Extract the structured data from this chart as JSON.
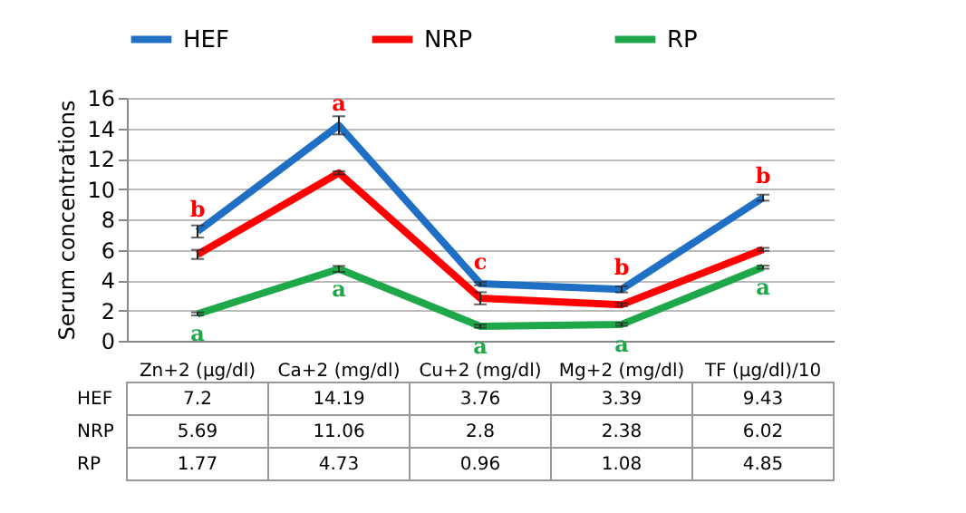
{
  "chart_data": {
    "type": "line",
    "ylabel": "Serum concentrations",
    "categories": [
      "Zn+2 (µg/dl)",
      "Ca+2 (mg/dl)",
      "Cu+2 (mg/dl)",
      "Mg+2 (mg/dl)",
      "TF (µg/dl)/10"
    ],
    "series": [
      {
        "name": "HEF",
        "color": "#1f6fc5",
        "values": [
          7.2,
          14.19,
          3.76,
          3.39,
          9.43
        ],
        "errors": [
          0.4,
          0.6,
          0.1,
          0.2,
          0.2
        ]
      },
      {
        "name": "NRP",
        "color": "#ff0000",
        "values": [
          5.69,
          11.06,
          2.8,
          2.38,
          6.02
        ],
        "errors": [
          0.3,
          0.1,
          0.4,
          0.1,
          0.1
        ]
      },
      {
        "name": "RP",
        "color": "#1ea84a",
        "values": [
          1.77,
          4.73,
          0.96,
          1.08,
          4.85
        ],
        "errors": [
          0.1,
          0.2,
          0.1,
          0.1,
          0.1
        ]
      }
    ],
    "ylim": [
      0,
      16
    ],
    "yticks": [
      0,
      2,
      4,
      6,
      8,
      10,
      12,
      14,
      16
    ],
    "grid": "y",
    "legend": "top",
    "marker": "none",
    "line_style": "solid",
    "data_labels": true,
    "annotations": [
      {
        "text": "b",
        "x": "Zn+2 (µg/dl)",
        "y": 5.69
      },
      {
        "text": "a",
        "x": "Zn+2 (µg/dl)",
        "y": 1.77
      },
      {
        "text": "a",
        "x": "Ca+2 (mg/dl)",
        "y": 11.06
      },
      {
        "text": "a",
        "x": "Ca+2 (mg/dl)",
        "y": 4.73
      },
      {
        "text": "c",
        "x": "Cu+2 (mg/dl)",
        "y": 2.8
      },
      {
        "text": "a",
        "x": "Cu+2 (mg/dl)",
        "y": 0.96
      },
      {
        "text": "b",
        "x": "Mg+2 (mg/dl)",
        "y": 2.38
      },
      {
        "text": "a",
        "x": "Mg+2 (mg/dl)",
        "y": 1.08
      },
      {
        "text": "b",
        "x": "TF (µg/dl)/10",
        "y": 6.02
      },
      {
        "text": "a",
        "x": "TF (µg/dl)/10",
        "y": 4.85
      }
    ]
  }
}
